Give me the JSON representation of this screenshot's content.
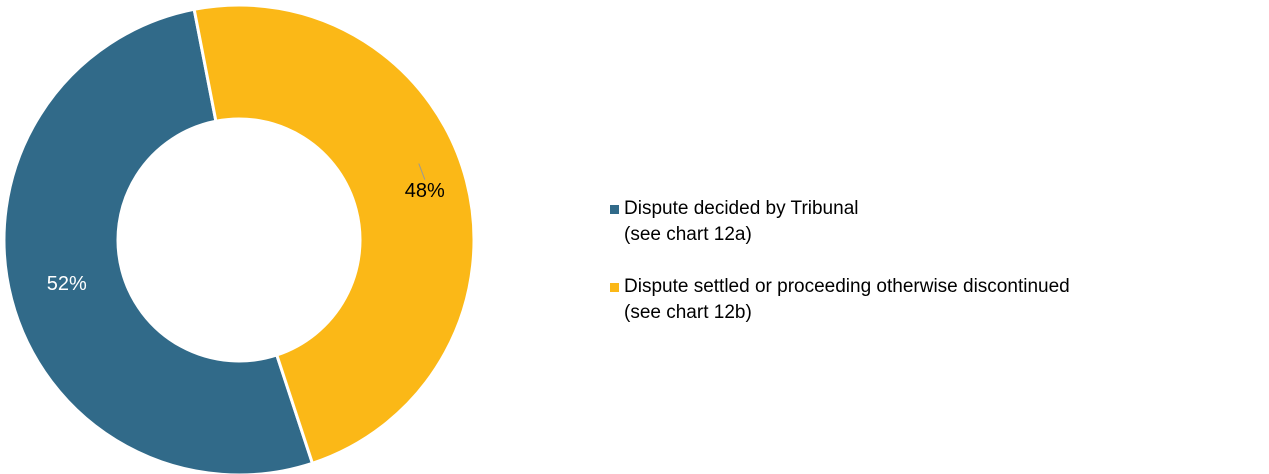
{
  "chart_data": {
    "type": "donut",
    "categories": [
      "Dispute decided by Tribunal\n(see chart 12a)",
      "Dispute settled or proceeding otherwise discontinued\n(see chart 12b)"
    ],
    "values": [
      52,
      48
    ],
    "value_labels": [
      "52%",
      "48%"
    ],
    "colors": [
      "#316a89",
      "#fbb817"
    ],
    "label_colors": [
      "#ffffff",
      "#000000"
    ],
    "legend": "right"
  }
}
